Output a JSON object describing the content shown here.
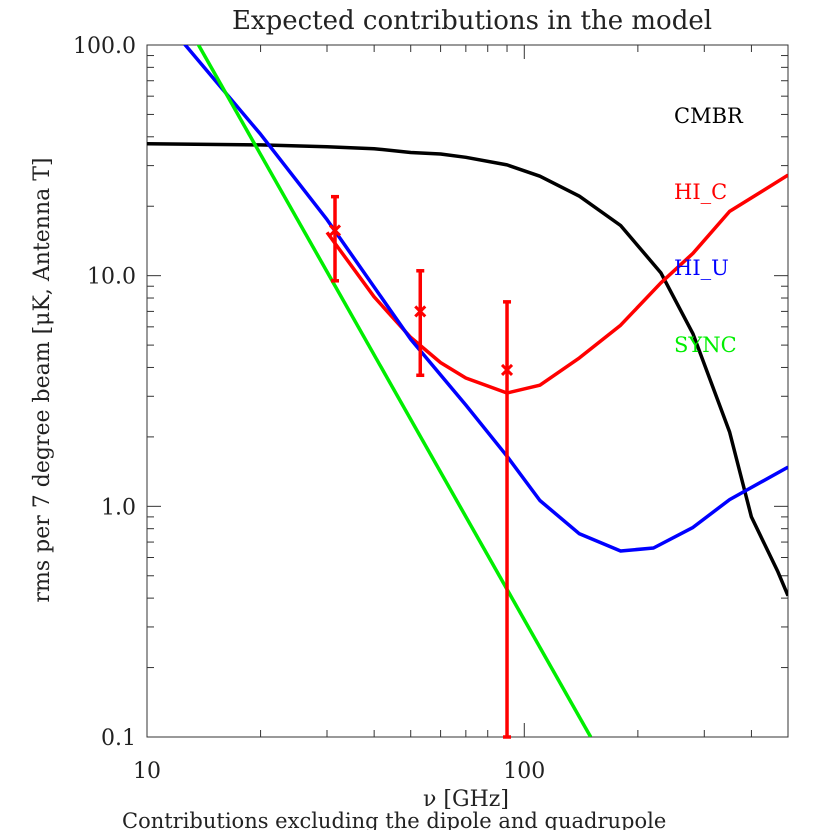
{
  "chart_data": {
    "type": "line",
    "title": "Expected contributions in the model",
    "xlabel": "ν [GHz]",
    "ylabel": "rms per 7 degree beam [μK, Antenna T]",
    "caption": "Contributions excluding the dipole and quadrupole",
    "x_scale": "log",
    "y_scale": "log",
    "xlim": [
      10,
      500
    ],
    "ylim": [
      0.1,
      100
    ],
    "x_ticks": [
      {
        "value": 10,
        "label": "10"
      },
      {
        "value": 100,
        "label": "100"
      }
    ],
    "y_ticks": [
      {
        "value": 0.1,
        "label": "0.1"
      },
      {
        "value": 1,
        "label": "1.0"
      },
      {
        "value": 10,
        "label": "10.0"
      },
      {
        "value": 100,
        "label": "100.0"
      }
    ],
    "grid": false,
    "legend_position": "right",
    "series": [
      {
        "name": "CMBR",
        "color": "#000000",
        "points": [
          [
            10,
            37.3
          ],
          [
            20,
            36.9
          ],
          [
            30,
            36.2
          ],
          [
            40,
            35.5
          ],
          [
            50,
            34.2
          ],
          [
            60,
            33.7
          ],
          [
            70,
            32.6
          ],
          [
            90,
            30.2
          ],
          [
            110,
            27.0
          ],
          [
            140,
            22.1
          ],
          [
            180,
            16.5
          ],
          [
            230,
            10.3
          ],
          [
            280,
            5.6
          ],
          [
            350,
            2.1
          ],
          [
            400,
            0.9
          ],
          [
            470,
            0.52
          ],
          [
            500,
            0.41
          ]
        ]
      },
      {
        "name": "HI_C",
        "color": "#ff0000",
        "points": [
          [
            30,
            15.4
          ],
          [
            40,
            8.1
          ],
          [
            50,
            5.4
          ],
          [
            60,
            4.2
          ],
          [
            70,
            3.6
          ],
          [
            90,
            3.1
          ],
          [
            110,
            3.35
          ],
          [
            140,
            4.4
          ],
          [
            180,
            6.1
          ],
          [
            230,
            9.3
          ],
          [
            280,
            12.5
          ],
          [
            350,
            19.0
          ],
          [
            500,
            27.3
          ]
        ]
      },
      {
        "name": "HI_U",
        "color": "#0000ff",
        "points": [
          [
            12.5,
            102
          ],
          [
            20,
            41
          ],
          [
            30,
            17.5
          ],
          [
            50,
            5.3
          ],
          [
            70,
            2.75
          ],
          [
            90,
            1.65
          ],
          [
            110,
            1.06
          ],
          [
            140,
            0.76
          ],
          [
            180,
            0.64
          ],
          [
            220,
            0.66
          ],
          [
            280,
            0.81
          ],
          [
            350,
            1.07
          ],
          [
            500,
            1.48
          ]
        ]
      },
      {
        "name": "SYNC",
        "color": "#00ee00",
        "points": [
          [
            13.6,
            102
          ],
          [
            150,
            0.1
          ]
        ]
      }
    ],
    "error_bars": [
      {
        "x": 31.5,
        "y": 15.7,
        "low": 9.5,
        "high": 22.0
      },
      {
        "x": 53,
        "y": 7.0,
        "low": 3.7,
        "high": 10.5
      },
      {
        "x": 90,
        "y": 3.9,
        "low": 0.1,
        "high": 7.7
      }
    ]
  }
}
